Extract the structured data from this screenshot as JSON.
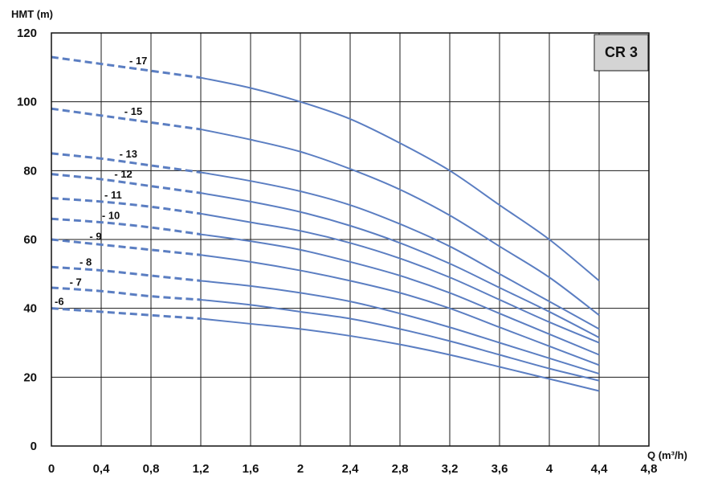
{
  "chart_data": {
    "type": "line",
    "ylabel": "HMT (m)",
    "xlabel": "Q (m³/h)",
    "model_box": "CR 3",
    "xlim": [
      0,
      4.8
    ],
    "ylim": [
      0,
      120
    ],
    "x_ticks": [
      "0",
      "0,4",
      "0,8",
      "1,2",
      "1,6",
      "2",
      "2,4",
      "2,8",
      "3,2",
      "3,6",
      "4",
      "4,4",
      "4,8"
    ],
    "y_ticks": [
      "0",
      "20",
      "40",
      "60",
      "80",
      "100",
      "120"
    ],
    "grid": true,
    "dashed_segment_x": [
      0,
      1.2
    ],
    "line_color": "#5b7ec2",
    "series": [
      {
        "name": "- 17",
        "points": [
          [
            0,
            113
          ],
          [
            0.4,
            111
          ],
          [
            0.8,
            109
          ],
          [
            1.2,
            107
          ],
          [
            1.6,
            104
          ],
          [
            2,
            100
          ],
          [
            2.4,
            95
          ],
          [
            2.8,
            88
          ],
          [
            3.2,
            80
          ],
          [
            3.6,
            70
          ],
          [
            4,
            60
          ],
          [
            4.4,
            48
          ]
        ]
      },
      {
        "name": "- 15",
        "points": [
          [
            0,
            98
          ],
          [
            0.4,
            96
          ],
          [
            0.8,
            94
          ],
          [
            1.2,
            92
          ],
          [
            1.6,
            89
          ],
          [
            2,
            85.5
          ],
          [
            2.4,
            80.5
          ],
          [
            2.8,
            74.5
          ],
          [
            3.2,
            67
          ],
          [
            3.6,
            58
          ],
          [
            4,
            49
          ],
          [
            4.4,
            38
          ]
        ]
      },
      {
        "name": "- 13",
        "points": [
          [
            0,
            85
          ],
          [
            0.4,
            83.5
          ],
          [
            0.8,
            81.5
          ],
          [
            1.2,
            79.5
          ],
          [
            1.6,
            77
          ],
          [
            2,
            74
          ],
          [
            2.4,
            70
          ],
          [
            2.8,
            64.5
          ],
          [
            3.2,
            58
          ],
          [
            3.6,
            50
          ],
          [
            4,
            42
          ],
          [
            4.4,
            34
          ]
        ]
      },
      {
        "name": "- 12",
        "points": [
          [
            0,
            79
          ],
          [
            0.4,
            77.5
          ],
          [
            0.8,
            75.5
          ],
          [
            1.2,
            73.5
          ],
          [
            1.6,
            71
          ],
          [
            2,
            68
          ],
          [
            2.4,
            64
          ],
          [
            2.8,
            59
          ],
          [
            3.2,
            53
          ],
          [
            3.6,
            46
          ],
          [
            4,
            39
          ],
          [
            4.4,
            31.5
          ]
        ]
      },
      {
        "name": "- 11",
        "points": [
          [
            0,
            72
          ],
          [
            0.4,
            71
          ],
          [
            0.8,
            69.5
          ],
          [
            1.2,
            67.5
          ],
          [
            1.6,
            65
          ],
          [
            2,
            62.5
          ],
          [
            2.4,
            59
          ],
          [
            2.8,
            54.5
          ],
          [
            3.2,
            49
          ],
          [
            3.6,
            42.5
          ],
          [
            4,
            36
          ],
          [
            4.4,
            30
          ]
        ]
      },
      {
        "name": "- 10",
        "points": [
          [
            0,
            66
          ],
          [
            0.4,
            65
          ],
          [
            0.8,
            63.5
          ],
          [
            1.2,
            61.5
          ],
          [
            1.6,
            59.5
          ],
          [
            2,
            57
          ],
          [
            2.4,
            53.5
          ],
          [
            2.8,
            49.5
          ],
          [
            3.2,
            44.5
          ],
          [
            3.6,
            38.5
          ],
          [
            4,
            32.5
          ],
          [
            4.4,
            26.5
          ]
        ]
      },
      {
        "name": "- 9",
        "points": [
          [
            0,
            60
          ],
          [
            0.4,
            58.5
          ],
          [
            0.8,
            57
          ],
          [
            1.2,
            55.5
          ],
          [
            1.6,
            53.5
          ],
          [
            2,
            51
          ],
          [
            2.4,
            48
          ],
          [
            2.8,
            44.5
          ],
          [
            3.2,
            40
          ],
          [
            3.6,
            34.5
          ],
          [
            4,
            29
          ],
          [
            4.4,
            23.5
          ]
        ]
      },
      {
        "name": "- 8",
        "points": [
          [
            0,
            52
          ],
          [
            0.4,
            51
          ],
          [
            0.8,
            49.5
          ],
          [
            1.2,
            48
          ],
          [
            1.6,
            46.5
          ],
          [
            2,
            44.5
          ],
          [
            2.4,
            42
          ],
          [
            2.8,
            38.5
          ],
          [
            3.2,
            34.5
          ],
          [
            3.6,
            30
          ],
          [
            4,
            25.5
          ],
          [
            4.4,
            21
          ]
        ]
      },
      {
        "name": "- 7",
        "points": [
          [
            0,
            46
          ],
          [
            0.4,
            45
          ],
          [
            0.8,
            43.5
          ],
          [
            1.2,
            42.5
          ],
          [
            1.6,
            41
          ],
          [
            2,
            39
          ],
          [
            2.4,
            37
          ],
          [
            2.8,
            34
          ],
          [
            3.2,
            30.5
          ],
          [
            3.6,
            26.5
          ],
          [
            4,
            22.5
          ],
          [
            4.4,
            19
          ]
        ]
      },
      {
        "name": "-6",
        "points": [
          [
            0,
            40
          ],
          [
            0.4,
            39
          ],
          [
            0.8,
            38
          ],
          [
            1.2,
            37
          ],
          [
            1.6,
            35.5
          ],
          [
            2,
            34
          ],
          [
            2.4,
            32
          ],
          [
            2.8,
            29.5
          ],
          [
            3.2,
            26.5
          ],
          [
            3.6,
            23
          ],
          [
            4,
            19.5
          ],
          [
            4.4,
            16
          ]
        ]
      }
    ],
    "curve_label_x": [
      0.6,
      0.56,
      0.52,
      0.48,
      0.4,
      0.38,
      0.28,
      0.2,
      0.12,
      0
    ]
  }
}
